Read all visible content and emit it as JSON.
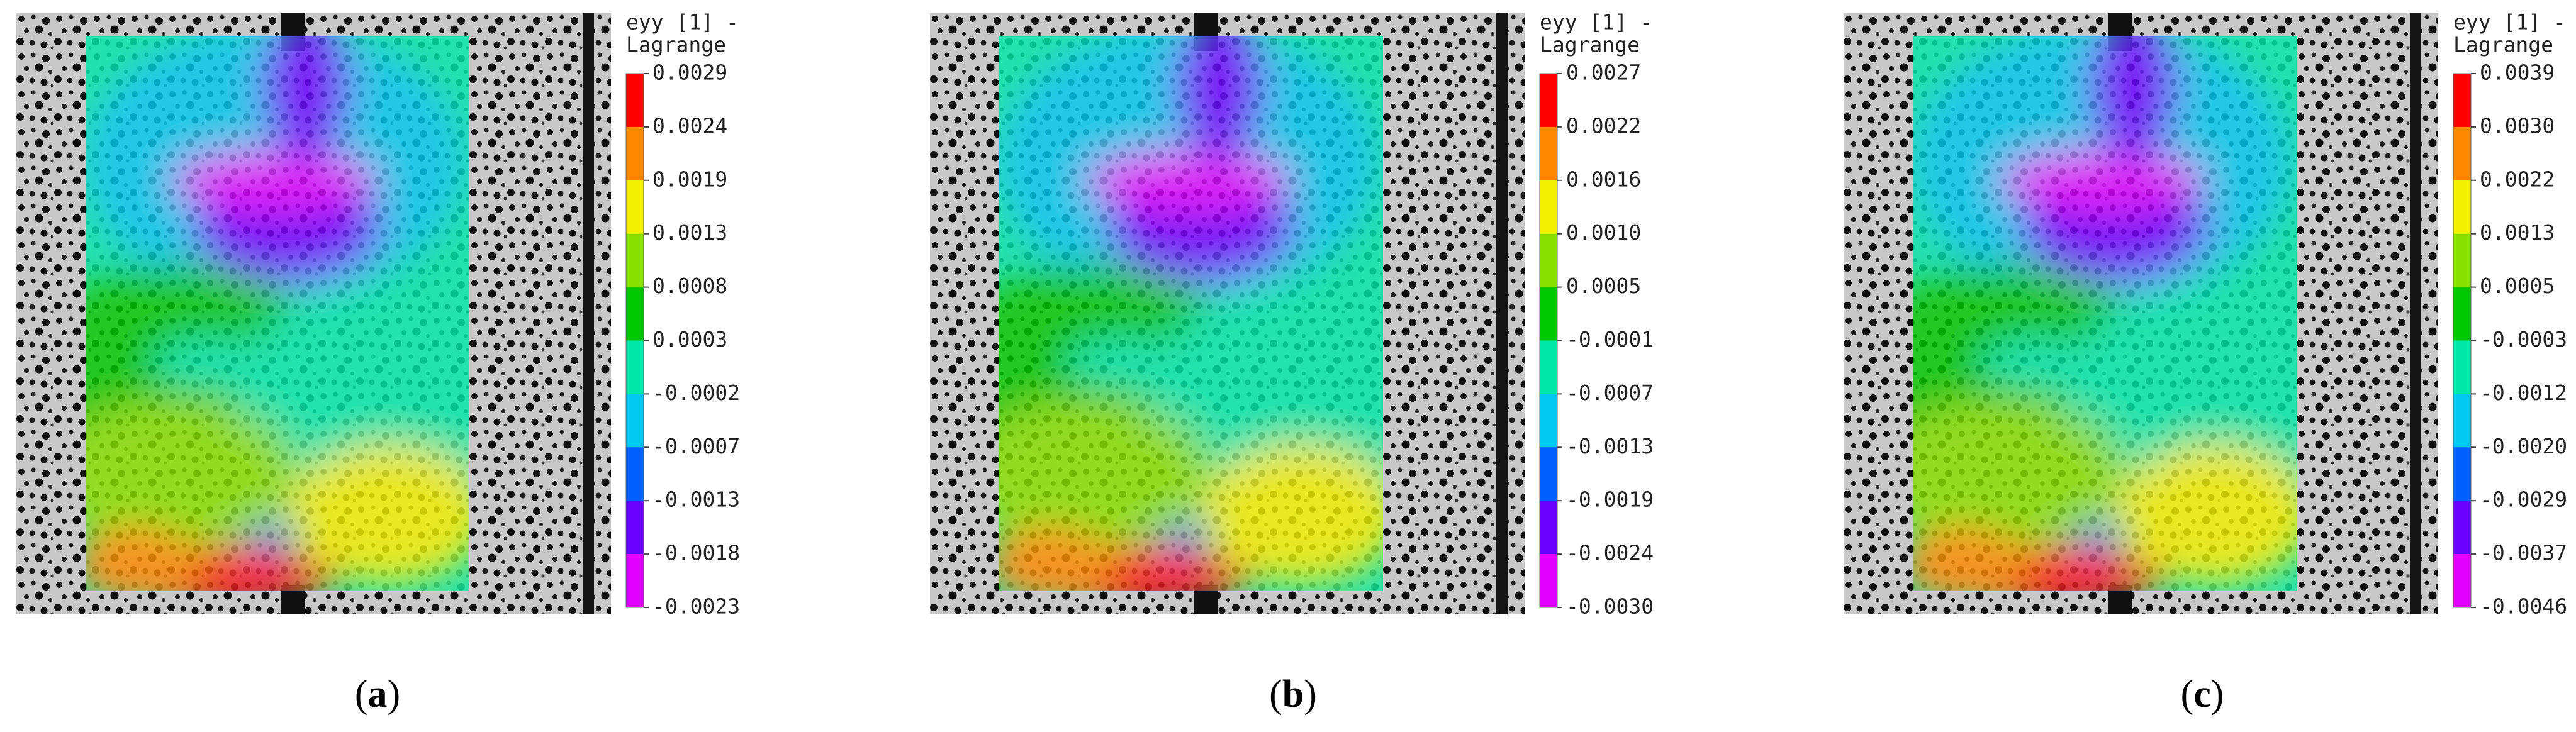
{
  "panels": [
    {
      "colorbar": {
        "title_line1": "eyy [1] -",
        "title_line2": "Lagrange",
        "ticks": [
          "0.0029",
          "0.0024",
          "0.0019",
          "0.0013",
          "0.0008",
          "0.0003",
          "-0.0002",
          "-0.0007",
          "-0.0013",
          "-0.0018",
          "-0.0023"
        ]
      },
      "caption": {
        "open": "(",
        "letter": "a",
        "close": ")"
      }
    },
    {
      "colorbar": {
        "title_line1": "eyy [1] -",
        "title_line2": "Lagrange",
        "ticks": [
          "0.0027",
          "0.0022",
          "0.0016",
          "0.0010",
          "0.0005",
          "-0.0001",
          "-0.0007",
          "-0.0013",
          "-0.0019",
          "-0.0024",
          "-0.0030"
        ]
      },
      "caption": {
        "open": "(",
        "letter": "b",
        "close": ")"
      }
    },
    {
      "colorbar": {
        "title_line1": "eyy [1] -",
        "title_line2": "Lagrange",
        "ticks": [
          "0.0039",
          "0.0030",
          "0.0022",
          "0.0013",
          "0.0005",
          "-0.0003",
          "-0.0012",
          "-0.0020",
          "-0.0029",
          "-0.0037",
          "-0.0046"
        ]
      },
      "caption": {
        "open": "(",
        "letter": "c",
        "close": ")"
      }
    }
  ]
}
